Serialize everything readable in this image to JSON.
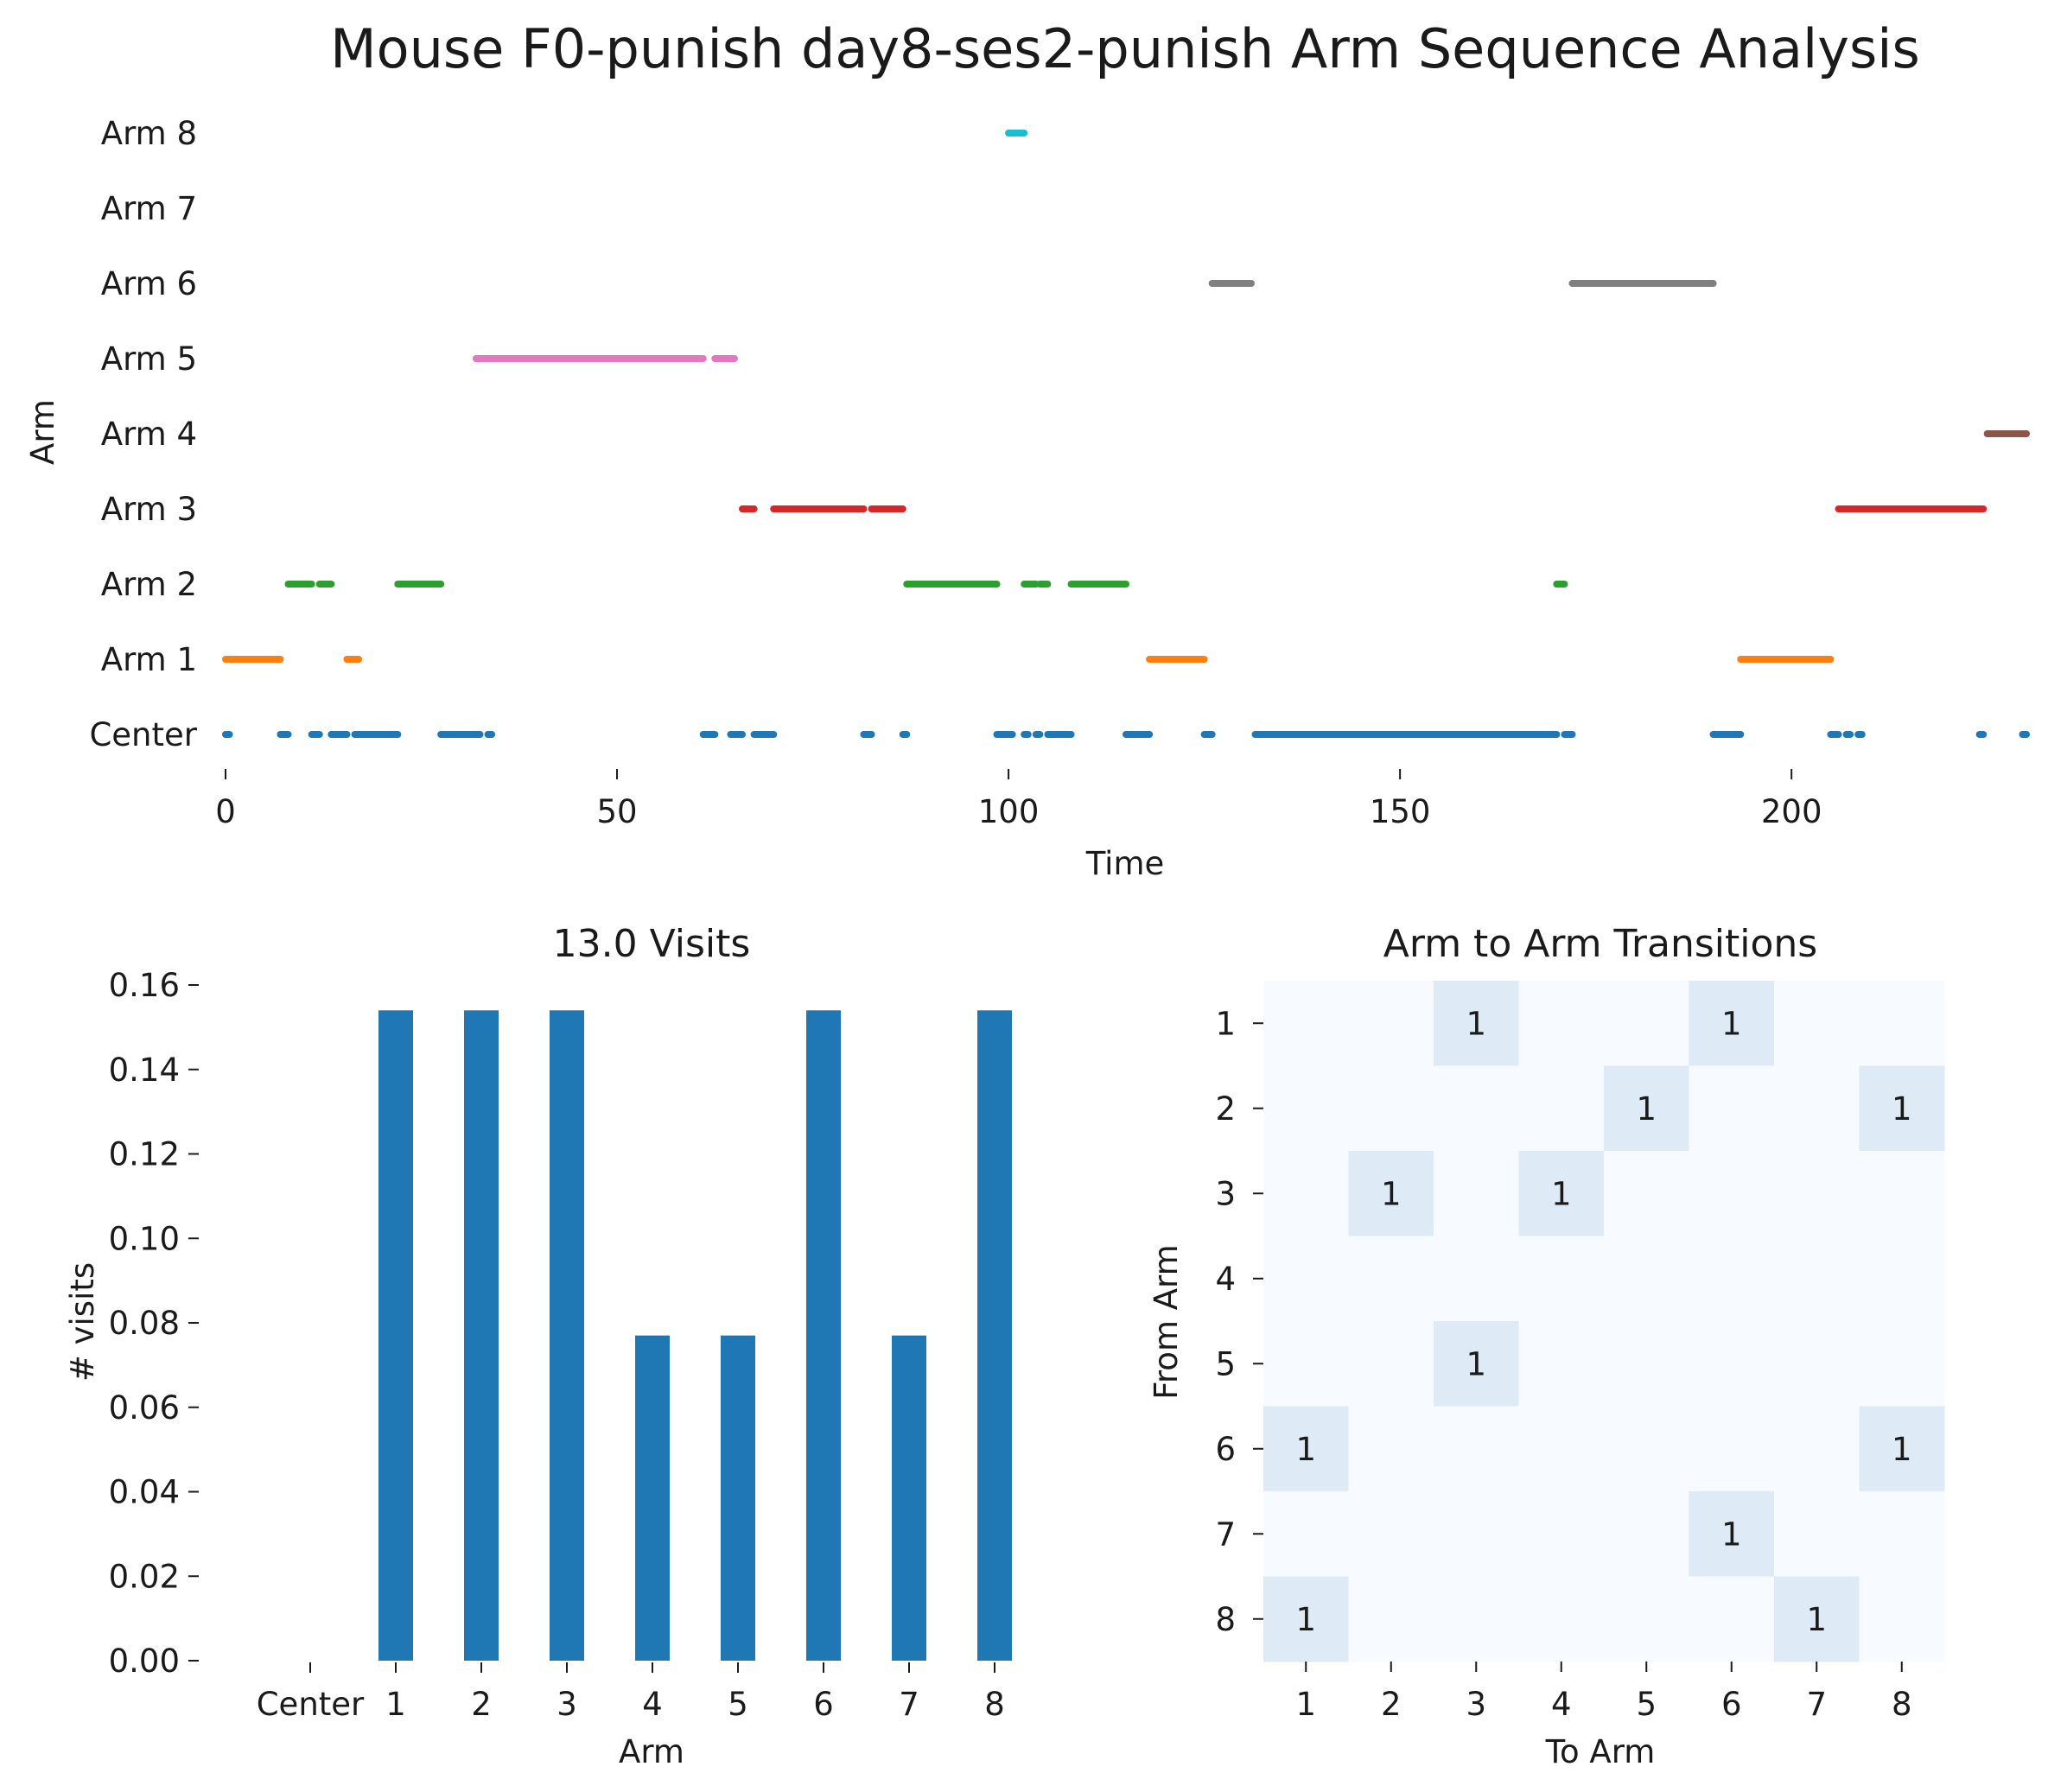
{
  "figure": {
    "title": "Mouse F0-punish day8-ses2-punish Arm Sequence Analysis"
  },
  "chart_data": [
    {
      "type": "scatter",
      "name": "arm-sequence",
      "xlabel": "Time",
      "ylabel": "Arm",
      "xlim": [
        0,
        230
      ],
      "xticks": [
        0,
        50,
        100,
        150,
        200
      ],
      "yticks": [
        "Center",
        "Arm 1",
        "Arm 2",
        "Arm 3",
        "Arm 4",
        "Arm 5",
        "Arm 6",
        "Arm 7",
        "Arm 8"
      ],
      "grid": false,
      "colors": {
        "Center": "#1f77b4",
        "Arm 1": "#ff7f0e",
        "Arm 2": "#2ca02c",
        "Arm 3": "#d62728",
        "Arm 4": "#8c564b",
        "Arm 5": "#e377c2",
        "Arm 6": "#7f7f7f",
        "Arm 7": "#bcbd22",
        "Arm 8": "#17becf"
      },
      "segments": [
        {
          "arm": "Center",
          "x0": 0,
          "x1": 0.5
        },
        {
          "arm": "Center",
          "x0": 7,
          "x1": 8
        },
        {
          "arm": "Center",
          "x0": 11,
          "x1": 12
        },
        {
          "arm": "Center",
          "x0": 13.5,
          "x1": 15.5
        },
        {
          "arm": "Center",
          "x0": 16.5,
          "x1": 22
        },
        {
          "arm": "Center",
          "x0": 27.5,
          "x1": 32.5
        },
        {
          "arm": "Center",
          "x0": 33.5,
          "x1": 34
        },
        {
          "arm": "Center",
          "x0": 61,
          "x1": 62.5
        },
        {
          "arm": "Center",
          "x0": 64.5,
          "x1": 66
        },
        {
          "arm": "Center",
          "x0": 67.5,
          "x1": 70
        },
        {
          "arm": "Center",
          "x0": 81.5,
          "x1": 82.5
        },
        {
          "arm": "Center",
          "x0": 86.5,
          "x1": 87
        },
        {
          "arm": "Center",
          "x0": 98.5,
          "x1": 100.5
        },
        {
          "arm": "Center",
          "x0": 102,
          "x1": 102.5
        },
        {
          "arm": "Center",
          "x0": 103.5,
          "x1": 104
        },
        {
          "arm": "Center",
          "x0": 105,
          "x1": 108
        },
        {
          "arm": "Center",
          "x0": 115,
          "x1": 118
        },
        {
          "arm": "Center",
          "x0": 125,
          "x1": 126
        },
        {
          "arm": "Center",
          "x0": 131.5,
          "x1": 170
        },
        {
          "arm": "Center",
          "x0": 171,
          "x1": 172
        },
        {
          "arm": "Center",
          "x0": 190,
          "x1": 193.5
        },
        {
          "arm": "Center",
          "x0": 205,
          "x1": 206
        },
        {
          "arm": "Center",
          "x0": 207,
          "x1": 207.5
        },
        {
          "arm": "Center",
          "x0": 208.5,
          "x1": 209
        },
        {
          "arm": "Center",
          "x0": 224,
          "x1": 224.5
        },
        {
          "arm": "Center",
          "x0": 229.5,
          "x1": 230
        },
        {
          "arm": "Arm 1",
          "x0": 0,
          "x1": 7
        },
        {
          "arm": "Arm 1",
          "x0": 15.5,
          "x1": 17
        },
        {
          "arm": "Arm 1",
          "x0": 118,
          "x1": 125
        },
        {
          "arm": "Arm 1",
          "x0": 193.5,
          "x1": 205
        },
        {
          "arm": "Arm 2",
          "x0": 8,
          "x1": 11
        },
        {
          "arm": "Arm 2",
          "x0": 12,
          "x1": 13.5
        },
        {
          "arm": "Arm 2",
          "x0": 22,
          "x1": 27.5
        },
        {
          "arm": "Arm 2",
          "x0": 87,
          "x1": 98.5
        },
        {
          "arm": "Arm 2",
          "x0": 102,
          "x1": 103.5
        },
        {
          "arm": "Arm 2",
          "x0": 104,
          "x1": 105
        },
        {
          "arm": "Arm 2",
          "x0": 108,
          "x1": 115
        },
        {
          "arm": "Arm 2",
          "x0": 170,
          "x1": 171
        },
        {
          "arm": "Arm 3",
          "x0": 66,
          "x1": 67.5
        },
        {
          "arm": "Arm 3",
          "x0": 70,
          "x1": 81.5
        },
        {
          "arm": "Arm 3",
          "x0": 82.5,
          "x1": 86.5
        },
        {
          "arm": "Arm 3",
          "x0": 206,
          "x1": 224.5
        },
        {
          "arm": "Arm 4",
          "x0": 225,
          "x1": 230
        },
        {
          "arm": "Arm 5",
          "x0": 32,
          "x1": 61
        },
        {
          "arm": "Arm 5",
          "x0": 62.5,
          "x1": 65
        },
        {
          "arm": "Arm 6",
          "x0": 126,
          "x1": 131
        },
        {
          "arm": "Arm 6",
          "x0": 172,
          "x1": 190
        },
        {
          "arm": "Arm 8",
          "x0": 100,
          "x1": 102
        }
      ]
    },
    {
      "type": "bar",
      "name": "visits",
      "title": "13.0 Visits",
      "xlabel": "Arm",
      "ylabel": "# visits",
      "categories": [
        "Center",
        "1",
        "2",
        "3",
        "4",
        "5",
        "6",
        "7",
        "8"
      ],
      "values": [
        0,
        0.154,
        0.154,
        0.154,
        0.077,
        0.077,
        0.154,
        0.077,
        0.154
      ],
      "ylim": [
        0,
        0.16
      ],
      "yticks": [
        "0.00",
        "0.02",
        "0.04",
        "0.06",
        "0.08",
        "0.10",
        "0.12",
        "0.14",
        "0.16"
      ],
      "bar_color": "#1f77b4",
      "grid": false
    },
    {
      "type": "heatmap",
      "name": "transitions",
      "title": "Arm to Arm Transitions",
      "xlabel": "To Arm",
      "ylabel": "From Arm",
      "x_categories": [
        "1",
        "2",
        "3",
        "4",
        "5",
        "6",
        "7",
        "8"
      ],
      "y_categories": [
        "1",
        "2",
        "3",
        "4",
        "5",
        "6",
        "7",
        "8"
      ],
      "values": [
        [
          0,
          0,
          1,
          0,
          0,
          1,
          0,
          0
        ],
        [
          0,
          0,
          0,
          0,
          1,
          0,
          0,
          1
        ],
        [
          0,
          1,
          0,
          1,
          0,
          0,
          0,
          0
        ],
        [
          0,
          0,
          0,
          0,
          0,
          0,
          0,
          0
        ],
        [
          0,
          0,
          1,
          0,
          0,
          0,
          0,
          0
        ],
        [
          1,
          0,
          0,
          0,
          0,
          0,
          0,
          1
        ],
        [
          0,
          0,
          0,
          0,
          0,
          1,
          0,
          0
        ],
        [
          1,
          0,
          0,
          0,
          0,
          0,
          1,
          0
        ]
      ],
      "colormap": {
        "zero": "#f7fbff",
        "one": "#deebf7"
      }
    }
  ]
}
